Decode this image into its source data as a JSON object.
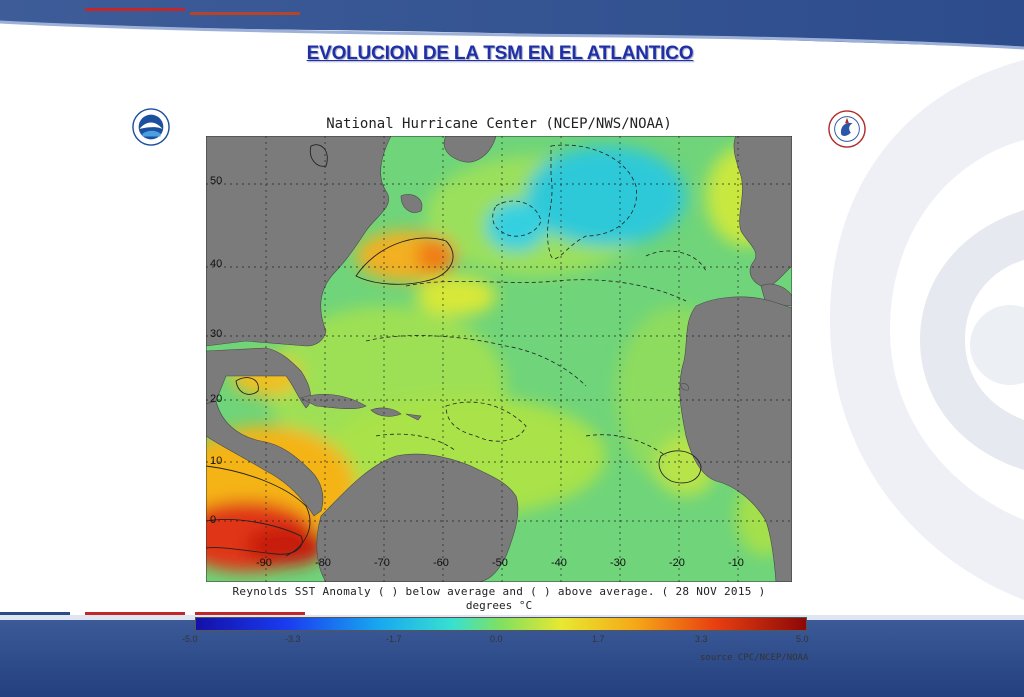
{
  "slide": {
    "title": "EVOLUCION DE LA TSM EN EL ATLANTICO",
    "colors": {
      "title": "#1f2fa8",
      "band_dark": "#1d3a7c",
      "band_mid": "#5b78b4",
      "accent_red": "#c0282a"
    }
  },
  "logos": {
    "left": "noaa-logo",
    "right": "nws-logo"
  },
  "map": {
    "title": "National Hurricane Center (NCEP/NWS/NOAA)",
    "caption": "Reynolds SST Anomaly (   ) below average and (   ) above average. ( 28 NOV 2015 )",
    "units": "degrees °C",
    "lat_labels": [
      "50",
      "40",
      "30",
      "20",
      "10",
      "0"
    ],
    "lon_labels": [
      "-90",
      "-80",
      "-70",
      "-60",
      "-50",
      "-40",
      "-30",
      "-20",
      "-10"
    ],
    "grid": true,
    "land_color": "#7b7b7b"
  },
  "colorbar": {
    "ticks": [
      "-5.0",
      "-3.3",
      "-1.7",
      "0.0",
      "1.7",
      "3.3",
      "5.0"
    ],
    "range": [
      -5.0,
      5.0
    ],
    "source": "source CPC/NCEP/NOAA"
  }
}
